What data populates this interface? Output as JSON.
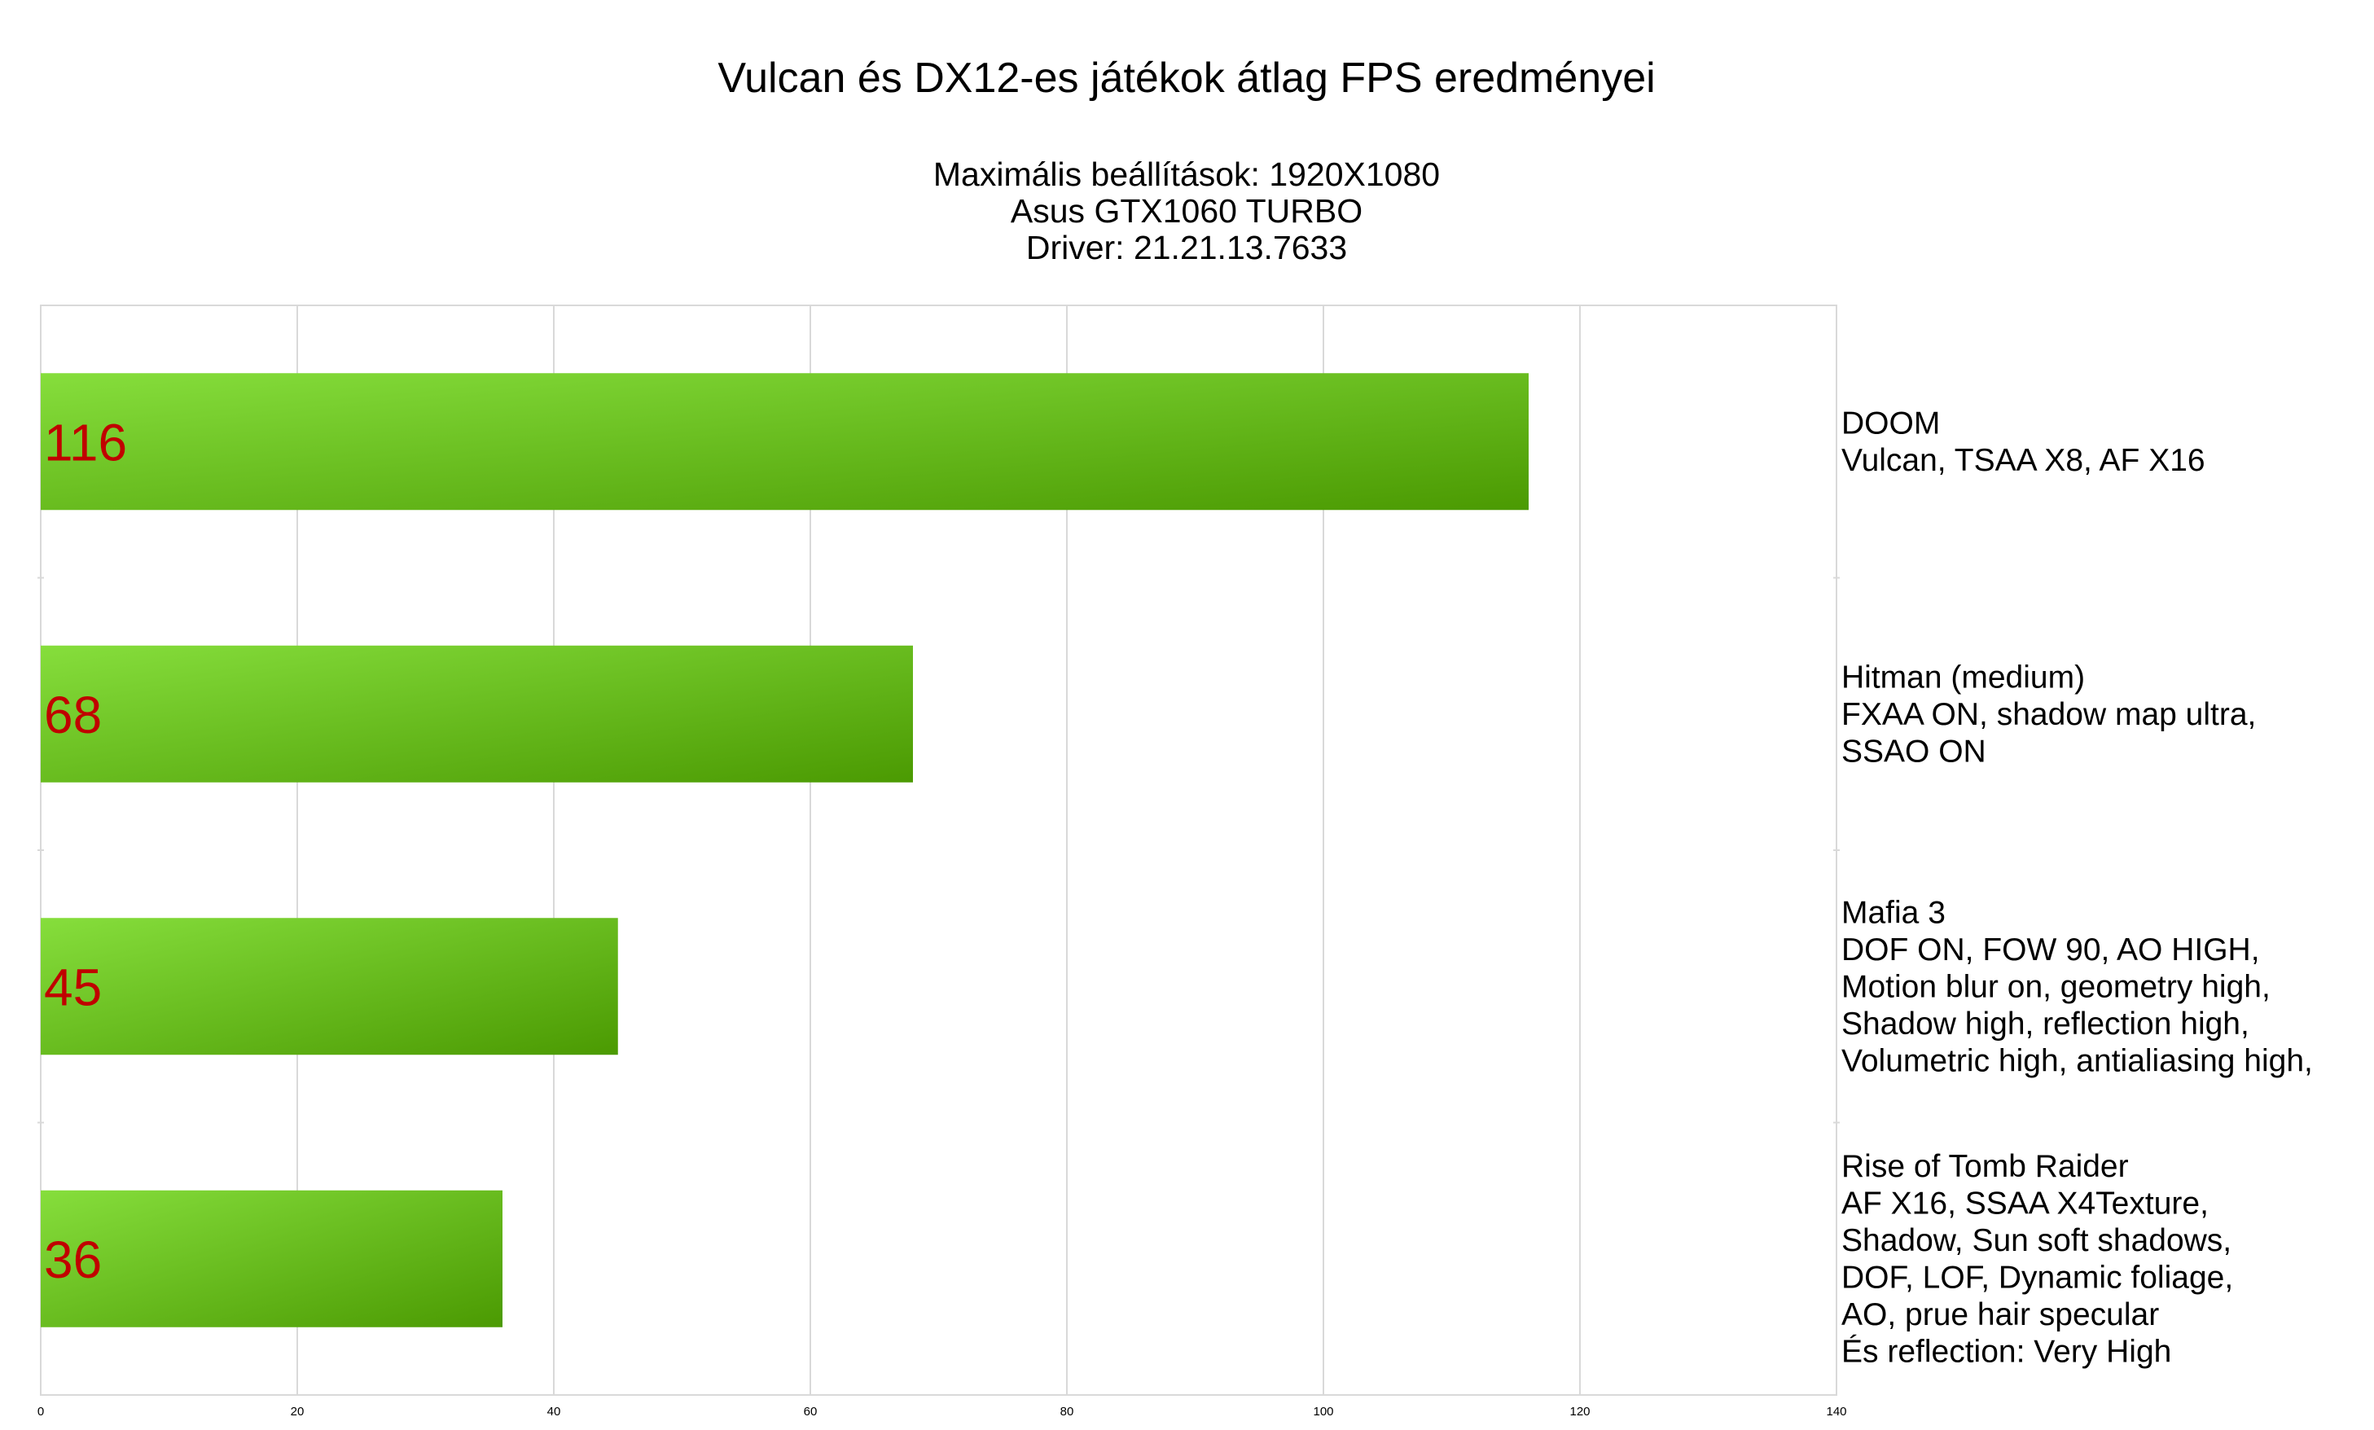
{
  "chart_data": {
    "type": "bar",
    "orientation": "horizontal",
    "title": "Vulcan és DX12-es játékok átlag FPS eredményei",
    "subtitle_lines": [
      "Maximális beállítások: 1920X1080",
      "Asus GTX1060 TURBO",
      "Driver: 21.21.13.7633"
    ],
    "categories": [
      {
        "name": "DOOM",
        "detail_lines": [
          "Vulcan, TSAA X8, AF X16"
        ]
      },
      {
        "name": "Hitman (medium)",
        "detail_lines": [
          "FXAA ON, shadow map ultra,",
          "SSAO ON"
        ]
      },
      {
        "name": "Mafia 3",
        "detail_lines": [
          "DOF ON, FOW 90, AO HIGH,",
          "Motion blur on, geometry high,",
          "Shadow high, reflection high,",
          "Volumetric high, antialiasing high,"
        ]
      },
      {
        "name": "Rise of Tomb Raider",
        "detail_lines": [
          "AF X16, SSAA X4Texture,",
          "Shadow, Sun soft shadows,",
          "DOF, LOF, Dynamic foliage,",
          "AO, prue hair specular",
          "És reflection: Very High"
        ]
      }
    ],
    "values": [
      116,
      68,
      45,
      36
    ],
    "xlim": [
      0,
      140
    ],
    "xticks": [
      "0",
      "20",
      "40",
      "60",
      "80",
      "100",
      "120",
      "140"
    ],
    "grid": true,
    "bar_colors": [
      "#86de3c",
      "#4b9a02"
    ],
    "value_label_color": "#c00000",
    "category_labels_position": "right"
  }
}
